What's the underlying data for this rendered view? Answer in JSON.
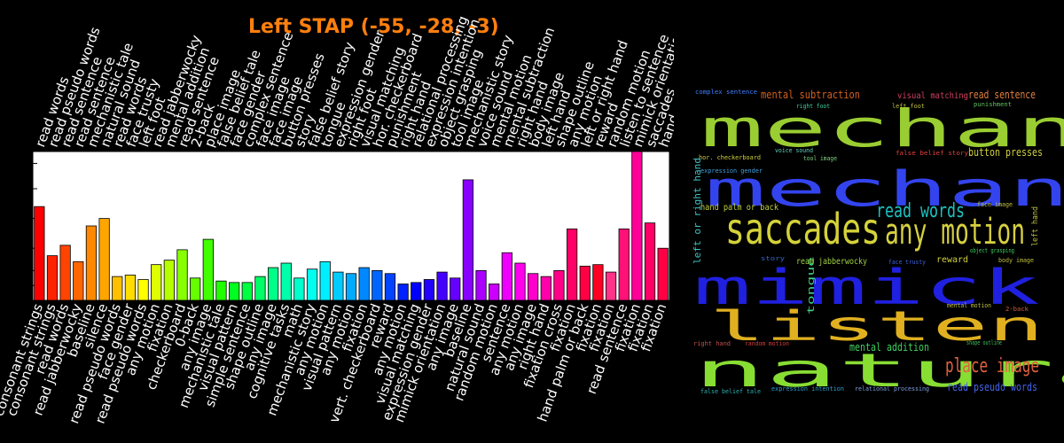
{
  "chart_data": {
    "type": "bar",
    "title": "Left STAP (-55, -28, -3)",
    "title_color": "#ff7f0e",
    "top_labels": [
      "read words",
      "read pseudo words",
      "read sentence",
      "read sentence",
      "mechanistic tale",
      "natural sound",
      "read words",
      "face trusty",
      "left foot",
      "read jabberwocky",
      "mental addition",
      "read sentence",
      "2-back",
      "place image",
      "false belief tale",
      "face gender",
      "complex sentence",
      "face image",
      "face image",
      "button presses",
      "story",
      "false belief story",
      "tongue",
      "expression gender",
      "right foot",
      "visual matching",
      "hor. checkerboard",
      "punishment",
      "right hand",
      "relational processing",
      "expression intention",
      "object grasping",
      "tool image",
      "mechanistic story",
      "voice sound",
      "mental motion",
      "mental subtraction",
      "right hand",
      "body image",
      "left hand",
      "shape outline",
      "any motion",
      "left or right hand",
      "reward",
      "random motion",
      "listen to sentence",
      "mimick orientation",
      "saccades",
      "hand palm or back"
    ],
    "bottom_labels": [
      "consonant strings",
      "consonant strings",
      "read words",
      "read jabberwocky",
      "baseline",
      "silence",
      "read pseudo words",
      "face gender",
      "read pseudo words",
      "any motion",
      "fixation",
      "checkerboard",
      "0-back",
      "any image",
      "mechanistic tale",
      "visual pattern",
      "simple sentence",
      "shape outline",
      "any image",
      "cognitive tasks",
      "math",
      "mechanistic story",
      "any motion",
      "visual pattern",
      "any motion",
      "fixation",
      "vert. checkerboard",
      "reward",
      "any motion",
      "visual matching",
      "expression gender",
      "mimick orientation",
      "any image",
      "baseline",
      "natural sound",
      "random motion",
      "sentence",
      "any motion",
      "any image",
      "right hand",
      "fixation cross",
      "fixation",
      "hand palm or back",
      "fixation",
      "fixation",
      "read sentence",
      "fixation",
      "fixation",
      "fixation"
    ],
    "values": [
      0.63,
      0.3,
      0.37,
      0.26,
      0.5,
      0.55,
      0.16,
      0.17,
      0.14,
      0.24,
      0.27,
      0.34,
      0.15,
      0.41,
      0.13,
      0.12,
      0.12,
      0.16,
      0.22,
      0.25,
      0.15,
      0.21,
      0.26,
      0.19,
      0.18,
      0.22,
      0.2,
      0.18,
      0.11,
      0.12,
      0.14,
      0.19,
      0.15,
      0.81,
      0.2,
      0.11,
      0.32,
      0.25,
      0.18,
      0.16,
      0.2,
      0.48,
      0.23,
      0.24,
      0.19,
      0.48,
      1.0,
      0.52,
      0.35
    ],
    "colors": [
      "#ff0000",
      "#ff2200",
      "#ff4400",
      "#ff6600",
      "#ff8800",
      "#ffa500",
      "#ffc000",
      "#ffdd00",
      "#ffff00",
      "#ddff00",
      "#b5ff00",
      "#88ff00",
      "#66ff00",
      "#40ff00",
      "#20ff00",
      "#00ff20",
      "#00ff40",
      "#00ff66",
      "#00ff88",
      "#00ffaa",
      "#00ffcc",
      "#00ffee",
      "#00eeff",
      "#00ccff",
      "#00aaff",
      "#0088ff",
      "#0066ff",
      "#0044ff",
      "#0022ff",
      "#0000ff",
      "#2200ff",
      "#4400ff",
      "#6600ff",
      "#8800ff",
      "#aa00ff",
      "#cc00ff",
      "#ee00ff",
      "#ff00ee",
      "#ff00cc",
      "#ff00aa",
      "#ff0088",
      "#ff0066",
      "#ff0044",
      "#ff0022",
      "#ff3388",
      "#ff1177",
      "#ff0099",
      "#ff0066",
      "#ff0044"
    ],
    "ylim": [
      0,
      1
    ],
    "grid": false,
    "xlabel": "",
    "ylabel": ""
  },
  "wordcloud": [
    {
      "text": "mechanistic tale",
      "color": "#9acd32",
      "size": 58
    },
    {
      "text": "mechanistic story",
      "color": "#3344ee",
      "size": 54
    },
    {
      "text": "saccades",
      "color": "#d4d23a",
      "size": 48
    },
    {
      "text": "any motion",
      "color": "#d6d040",
      "size": 40
    },
    {
      "text": "read words",
      "color": "#20c0c0",
      "size": 22
    },
    {
      "text": "mimick orientation",
      "color": "#2020e0",
      "size": 54
    },
    {
      "text": "listen to sentence",
      "color": "#e0b020",
      "size": 46
    },
    {
      "text": "natural sound",
      "color": "#88dd33",
      "size": 52
    },
    {
      "text": "place image",
      "color": "#e06040",
      "size": 22
    },
    {
      "text": "read pseudo words",
      "color": "#4466ee",
      "size": 12
    },
    {
      "text": "mental subtraction",
      "color": "#d06020",
      "size": 12
    },
    {
      "text": "visual matching",
      "color": "#d04060",
      "size": 10
    },
    {
      "text": "read sentence",
      "color": "#e08040",
      "size": 12
    },
    {
      "text": "complex sentence",
      "color": "#4080ff",
      "size": 7
    },
    {
      "text": "right foot",
      "color": "#40d0a0",
      "size": 7
    },
    {
      "text": "left foot",
      "color": "#c0c040",
      "size": 7
    },
    {
      "text": "punishment",
      "color": "#60c060",
      "size": 7
    },
    {
      "text": "false belief story",
      "color": "#e04040",
      "size": 7
    },
    {
      "text": "button presses",
      "color": "#d0d040",
      "size": 12
    },
    {
      "text": "hor. checkerboard",
      "color": "#d0d040",
      "size": 7
    },
    {
      "text": "voice sound",
      "color": "#60d0c0",
      "size": 7
    },
    {
      "text": "expression gender",
      "color": "#40a0e0",
      "size": 7
    },
    {
      "text": "tool image",
      "color": "#80d080",
      "size": 7
    },
    {
      "text": "hand palm or back",
      "color": "#c0d040",
      "size": 10
    },
    {
      "text": "face image",
      "color": "#c0c040",
      "size": 7
    },
    {
      "text": "story",
      "color": "#3366cc",
      "size": 7
    },
    {
      "text": "read jabberwocky",
      "color": "#a0d040",
      "size": 10
    },
    {
      "text": "face trusty",
      "color": "#4060e0",
      "size": 7
    },
    {
      "text": "reward",
      "color": "#d0d040",
      "size": 10
    },
    {
      "text": "object grasping",
      "color": "#40d060",
      "size": 7
    },
    {
      "text": "body image",
      "color": "#c0c040",
      "size": 7
    },
    {
      "text": "mental motion",
      "color": "#c0c040",
      "size": 7
    },
    {
      "text": "2-back",
      "color": "#d06040",
      "size": 7
    },
    {
      "text": "right hand",
      "color": "#c05050",
      "size": 7
    },
    {
      "text": "random motion",
      "color": "#d04040",
      "size": 7
    },
    {
      "text": "mental addition",
      "color": "#40d060",
      "size": 12
    },
    {
      "text": "shape outline",
      "color": "#40c060",
      "size": 7
    },
    {
      "text": "false belief tale",
      "color": "#30b0b0",
      "size": 7
    },
    {
      "text": "expression intention",
      "color": "#30a0d0",
      "size": 7
    },
    {
      "text": "relational processing",
      "color": "#80a0e0",
      "size": 7
    },
    {
      "text": "left or right hand",
      "color": "#40c0c0",
      "size": 11
    },
    {
      "text": "tongue",
      "color": "#40d080",
      "size": 11
    },
    {
      "text": "left hand",
      "color": "#c0c040",
      "size": 9
    }
  ]
}
